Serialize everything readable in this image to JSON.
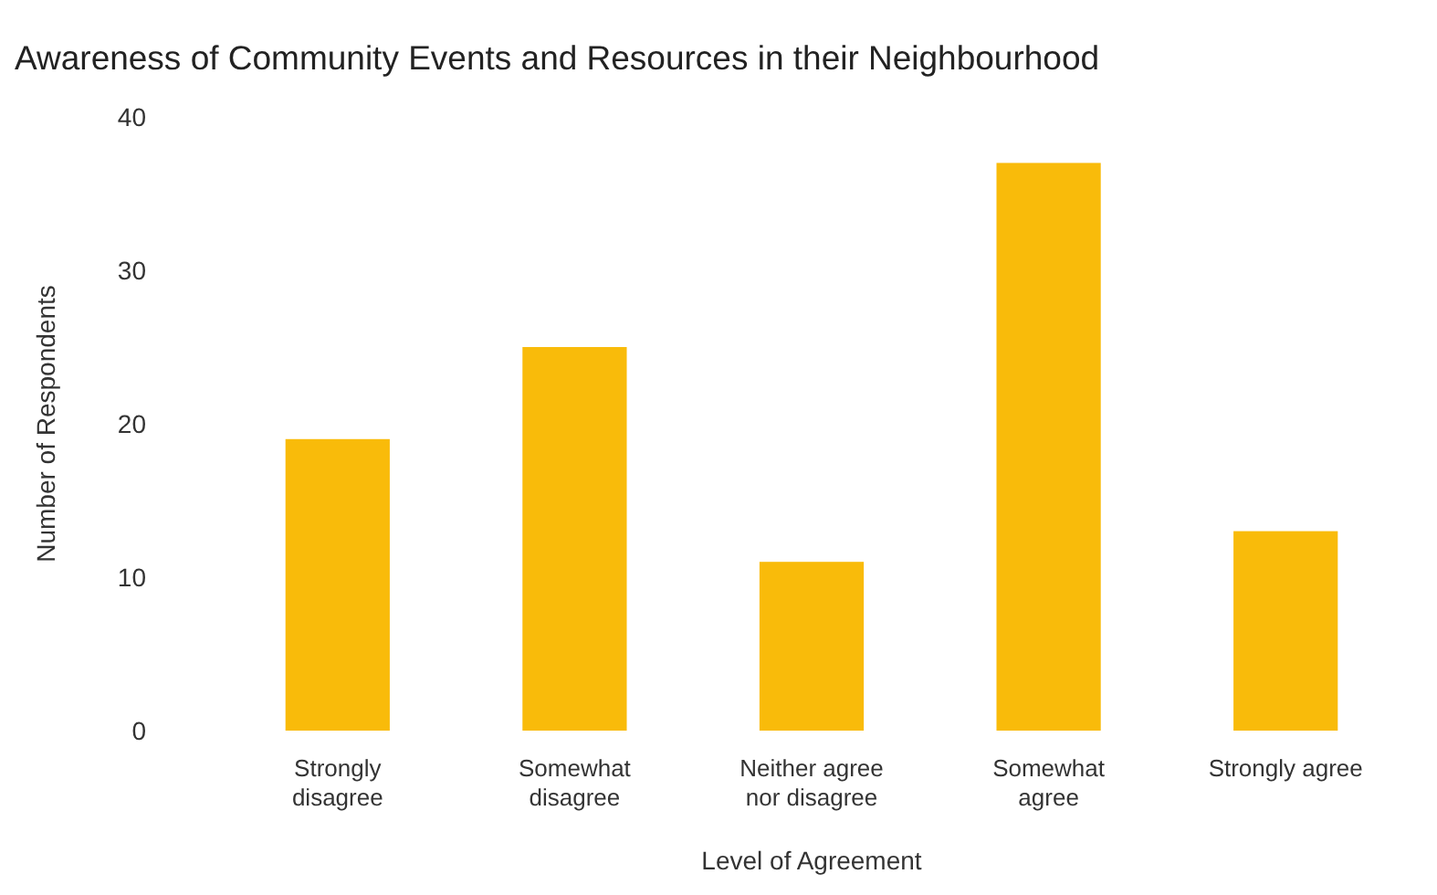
{
  "chart_data": {
    "type": "bar",
    "title": "Awareness of Community Events and Resources in their Neighbourhood",
    "xlabel": "Level of Agreement",
    "ylabel": "Number of Respondents",
    "categories": [
      "Strongly disagree",
      "Somewhat disagree",
      "Neither agree nor disagree",
      "Somewhat agree",
      "Strongly agree"
    ],
    "values": [
      19,
      25,
      11,
      37,
      13
    ],
    "color": "#f9bb0a",
    "ylim": [
      0,
      40
    ],
    "yticks": [
      0,
      10,
      20,
      30,
      40
    ],
    "grid": false
  }
}
